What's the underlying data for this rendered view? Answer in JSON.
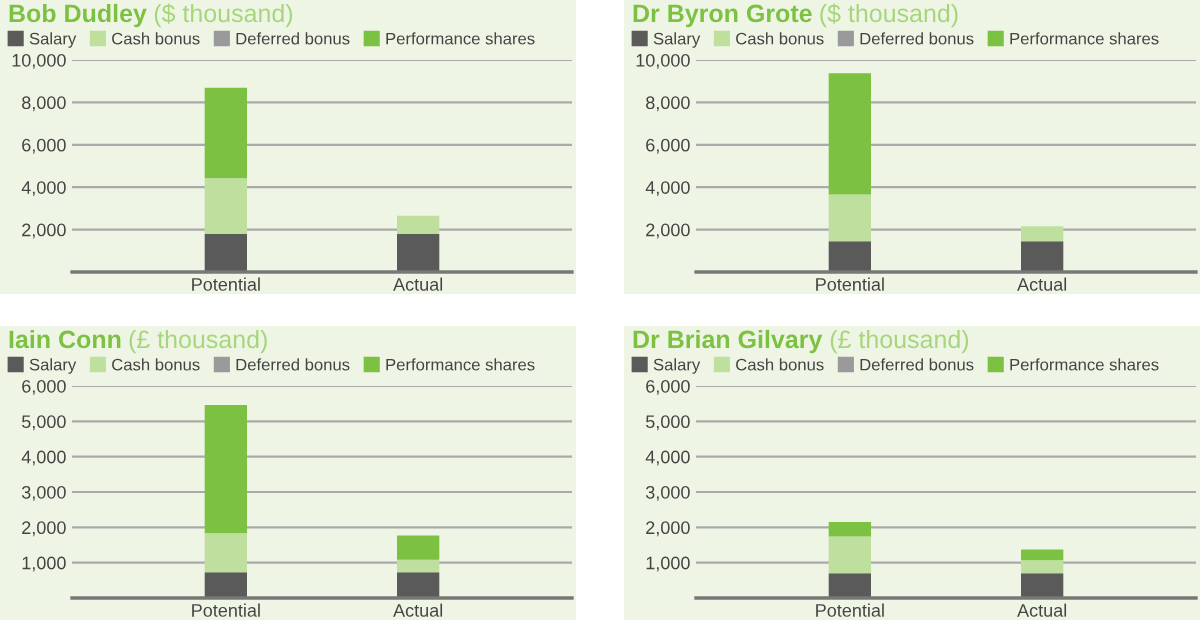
{
  "chart_data": [
    {
      "type": "bar",
      "title": "Bob Dudley",
      "subtitle": "($ thousand)",
      "categories": [
        "Potential",
        "Actual"
      ],
      "stacked": true,
      "ylim": [
        0,
        10000
      ],
      "yticks": [
        {
          "value": 0,
          "label": null
        },
        {
          "value": 2000,
          "label": "2,000"
        },
        {
          "value": 4000,
          "label": "4,000"
        },
        {
          "value": 6000,
          "label": "6,000"
        },
        {
          "value": 8000,
          "label": "8,000"
        },
        {
          "value": 10000,
          "label": "10,000"
        }
      ],
      "grid": "y",
      "legend": "top",
      "series": [
        {
          "name": "Salary",
          "color": "#5a5a5a",
          "values": [
            1800,
            1800
          ]
        },
        {
          "name": "Cash bonus",
          "color": "#bfdf9f",
          "values": [
            2620,
            850
          ]
        },
        {
          "name": "Deferred bonus",
          "color": "#9a9a9a",
          "values": [
            0,
            0
          ]
        },
        {
          "name": "Performance shares",
          "color": "#7cc142",
          "values": [
            4270,
            0
          ]
        }
      ]
    },
    {
      "type": "bar",
      "title": "Dr Byron Grote",
      "subtitle": "($ thousand)",
      "categories": [
        "Potential",
        "Actual"
      ],
      "stacked": true,
      "ylim": [
        0,
        10000
      ],
      "yticks": [
        {
          "value": 0,
          "label": null
        },
        {
          "value": 2000,
          "label": "2,000"
        },
        {
          "value": 4000,
          "label": "4,000"
        },
        {
          "value": 6000,
          "label": "6,000"
        },
        {
          "value": 8000,
          "label": "8,000"
        },
        {
          "value": 10000,
          "label": "10,000"
        }
      ],
      "grid": "y",
      "legend": "top",
      "series": [
        {
          "name": "Salary",
          "color": "#5a5a5a",
          "values": [
            1450,
            1450
          ]
        },
        {
          "name": "Cash bonus",
          "color": "#bfdf9f",
          "values": [
            2200,
            710
          ]
        },
        {
          "name": "Deferred bonus",
          "color": "#9a9a9a",
          "values": [
            0,
            0
          ]
        },
        {
          "name": "Performance shares",
          "color": "#7cc142",
          "values": [
            5720,
            0
          ]
        }
      ]
    },
    {
      "type": "bar",
      "title": "Iain Conn",
      "subtitle": "(£ thousand)",
      "categories": [
        "Potential",
        "Actual"
      ],
      "stacked": true,
      "ylim": [
        0,
        6000
      ],
      "yticks": [
        {
          "value": 0,
          "label": null
        },
        {
          "value": 1000,
          "label": "1,000"
        },
        {
          "value": 2000,
          "label": "2,000"
        },
        {
          "value": 3000,
          "label": "3,000"
        },
        {
          "value": 4000,
          "label": "4,000"
        },
        {
          "value": 5000,
          "label": "5,000"
        },
        {
          "value": 6000,
          "label": "6,000"
        }
      ],
      "grid": "y",
      "legend": "top",
      "series": [
        {
          "name": "Salary",
          "color": "#5a5a5a",
          "values": [
            730,
            730
          ]
        },
        {
          "name": "Cash bonus",
          "color": "#bfdf9f",
          "values": [
            1100,
            350
          ]
        },
        {
          "name": "Deferred bonus",
          "color": "#9a9a9a",
          "values": [
            0,
            0
          ]
        },
        {
          "name": "Performance shares",
          "color": "#7cc142",
          "values": [
            3630,
            690
          ]
        }
      ]
    },
    {
      "type": "bar",
      "title": "Dr Brian Gilvary",
      "subtitle": "(£ thousand)",
      "categories": [
        "Potential",
        "Actual"
      ],
      "stacked": true,
      "ylim": [
        0,
        6000
      ],
      "yticks": [
        {
          "value": 0,
          "label": null
        },
        {
          "value": 1000,
          "label": "1,000"
        },
        {
          "value": 2000,
          "label": "2,000"
        },
        {
          "value": 3000,
          "label": "3,000"
        },
        {
          "value": 4000,
          "label": "4,000"
        },
        {
          "value": 5000,
          "label": "5,000"
        },
        {
          "value": 6000,
          "label": "6,000"
        }
      ],
      "grid": "y",
      "legend": "top",
      "series": [
        {
          "name": "Salary",
          "color": "#5a5a5a",
          "values": [
            700,
            700
          ]
        },
        {
          "name": "Cash bonus",
          "color": "#bfdf9f",
          "values": [
            1040,
            370
          ]
        },
        {
          "name": "Deferred bonus",
          "color": "#9a9a9a",
          "values": [
            0,
            0
          ]
        },
        {
          "name": "Performance shares",
          "color": "#7cc142",
          "values": [
            410,
            300
          ]
        }
      ]
    }
  ]
}
